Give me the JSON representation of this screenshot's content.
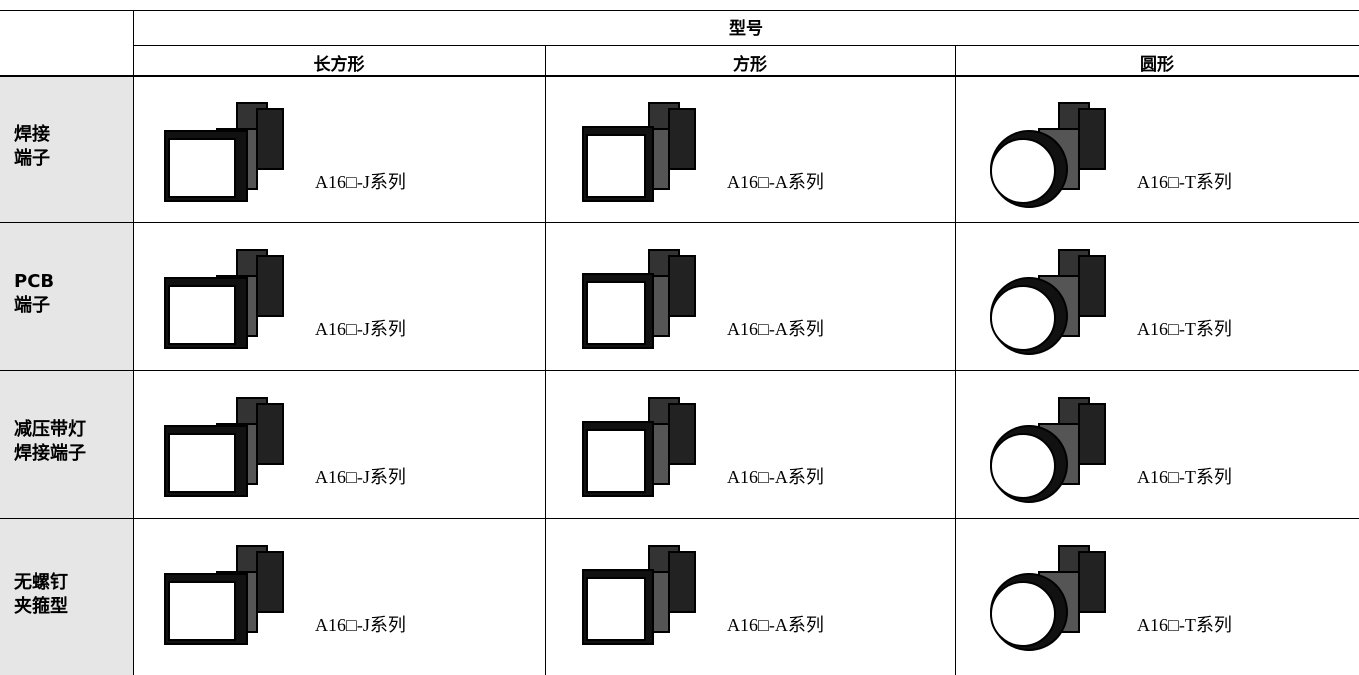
{
  "header": {
    "group": "型号",
    "columns": [
      "长方形",
      "方形",
      "圆形"
    ]
  },
  "rows": [
    {
      "label": [
        "焊接",
        "端子"
      ],
      "cells": [
        "A16□-J系列",
        "A16□-A系列",
        "A16□-T系列"
      ]
    },
    {
      "label": [
        "PCB",
        "端子"
      ],
      "cells": [
        "A16□-J系列",
        "A16□-A系列",
        "A16□-T系列"
      ]
    },
    {
      "label": [
        "减压带灯",
        "焊接端子"
      ],
      "cells": [
        "A16□-J系列",
        "A16□-A系列",
        "A16□-T系列"
      ]
    },
    {
      "label": [
        "无螺钉",
        "夹箍型"
      ],
      "cells": [
        "A16□-J系列",
        "A16□-A系列",
        "A16□-T系列"
      ]
    }
  ]
}
